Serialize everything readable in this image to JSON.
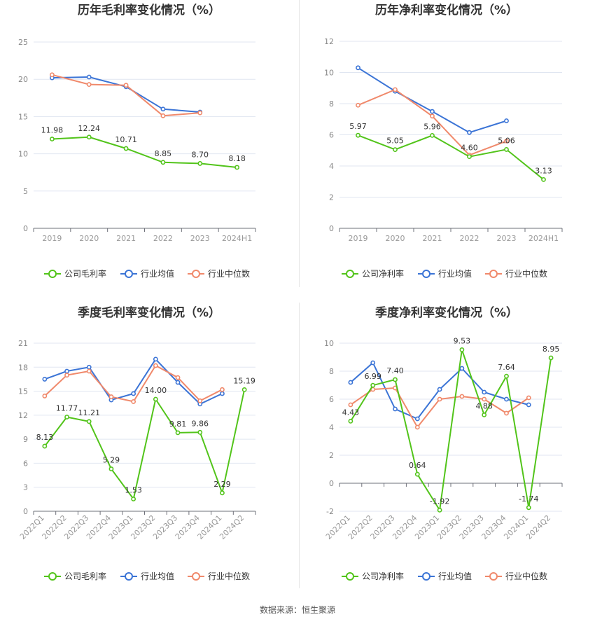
{
  "source_text": "数据来源：恒生聚源",
  "colors": {
    "company": "#52c41a",
    "avg": "#3b74d6",
    "median": "#f0896b"
  },
  "chart_data": [
    {
      "type": "line",
      "title": "历年毛利率变化情况（%）",
      "categories": [
        "2019",
        "2020",
        "2021",
        "2022",
        "2023",
        "2024H1"
      ],
      "ylim": [
        0,
        25
      ],
      "yticks": [
        0,
        5,
        10,
        15,
        20,
        25
      ],
      "series": [
        {
          "name": "公司毛利率",
          "values": [
            11.98,
            12.24,
            10.71,
            8.85,
            8.7,
            8.18
          ],
          "labels": [
            "11.98",
            "12.24",
            "10.71",
            "8.85",
            "8.70",
            "8.18"
          ]
        },
        {
          "name": "行业均值",
          "values": [
            20.2,
            20.3,
            19.0,
            16.0,
            15.6,
            null
          ]
        },
        {
          "name": "行业中位数",
          "values": [
            20.6,
            19.3,
            19.2,
            15.1,
            15.5,
            null
          ]
        }
      ],
      "grid": true,
      "legend": "bottom"
    },
    {
      "type": "line",
      "title": "历年净利率变化情况（%）",
      "categories": [
        "2019",
        "2020",
        "2021",
        "2022",
        "2023",
        "2024H1"
      ],
      "ylim": [
        0,
        12
      ],
      "yticks": [
        0,
        2,
        4,
        6,
        8,
        10,
        12
      ],
      "series": [
        {
          "name": "公司净利率",
          "values": [
            5.97,
            5.05,
            5.96,
            4.6,
            5.06,
            3.13
          ],
          "labels": [
            "5.97",
            "5.05",
            "5.96",
            "4.60",
            "5.06",
            "3.13"
          ]
        },
        {
          "name": "行业均值",
          "values": [
            10.3,
            8.8,
            7.5,
            6.15,
            6.9,
            null
          ]
        },
        {
          "name": "行业中位数",
          "values": [
            7.9,
            8.9,
            7.2,
            4.7,
            5.6,
            null
          ]
        }
      ],
      "grid": true,
      "legend": "bottom"
    },
    {
      "type": "line",
      "title": "季度毛利率变化情况（%）",
      "categories": [
        "2022Q1",
        "2022Q2",
        "2022Q3",
        "2022Q4",
        "2023Q1",
        "2023Q2",
        "2023Q3",
        "2023Q4",
        "2024Q1",
        "2024Q2"
      ],
      "ylim": [
        0,
        21
      ],
      "yticks": [
        0,
        3,
        6,
        9,
        12,
        15,
        18,
        21
      ],
      "series": [
        {
          "name": "公司毛利率",
          "values": [
            8.13,
            11.77,
            11.21,
            5.29,
            1.53,
            14.0,
            9.81,
            9.86,
            2.29,
            15.19
          ],
          "labels": [
            "8.13",
            "11.77",
            "11.21",
            "5.29",
            "1.53",
            "14.00",
            "9.81",
            "9.86",
            "2.29",
            "15.19"
          ]
        },
        {
          "name": "行业均值",
          "values": [
            16.5,
            17.5,
            18.0,
            13.9,
            14.7,
            19.0,
            16.1,
            13.4,
            14.7,
            null
          ]
        },
        {
          "name": "行业中位数",
          "values": [
            14.4,
            17.0,
            17.5,
            14.3,
            13.7,
            18.2,
            16.7,
            13.8,
            15.2,
            null
          ]
        }
      ],
      "grid": true,
      "legend": "bottom"
    },
    {
      "type": "line",
      "title": "季度净利率变化情况（%）",
      "categories": [
        "2022Q1",
        "2022Q2",
        "2022Q3",
        "2022Q4",
        "2023Q1",
        "2023Q2",
        "2023Q3",
        "2023Q4",
        "2024Q1",
        "2024Q2"
      ],
      "ylim": [
        -2,
        10
      ],
      "yticks": [
        -2,
        0,
        2,
        4,
        6,
        8,
        10
      ],
      "series": [
        {
          "name": "公司净利率",
          "values": [
            4.43,
            6.99,
            7.4,
            0.64,
            -1.92,
            9.53,
            4.88,
            7.64,
            -1.74,
            8.95
          ],
          "labels": [
            "4.43",
            "6.99",
            "7.40",
            "0.64",
            "-1.92",
            "9.53",
            "4.88",
            "7.64",
            "-1.74",
            "8.95"
          ]
        },
        {
          "name": "行业均值",
          "values": [
            7.2,
            8.6,
            5.3,
            4.6,
            6.7,
            8.2,
            6.5,
            6.0,
            5.6,
            null
          ]
        },
        {
          "name": "行业中位数",
          "values": [
            5.6,
            6.7,
            6.8,
            4.0,
            6.0,
            6.2,
            6.0,
            5.0,
            6.1,
            null
          ]
        }
      ],
      "grid": true,
      "legend": "bottom"
    }
  ]
}
